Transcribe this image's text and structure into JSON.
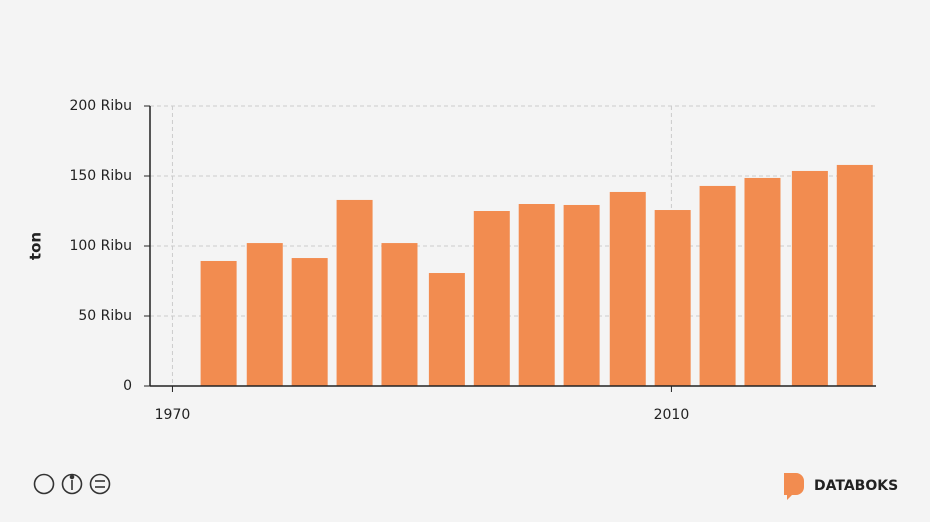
{
  "chart_data": {
    "type": "bar",
    "y_label": "ton",
    "x": [
      1973.7,
      1977.4,
      1981.0,
      1984.6,
      1988.2,
      1992.0,
      1995.6,
      1999.2,
      2002.8,
      2006.5,
      2010.1,
      2013.7,
      2017.3,
      2021.1,
      2024.7
    ],
    "values": [
      89300,
      102100,
      91400,
      132900,
      102100,
      80700,
      125000,
      130000,
      129300,
      138600,
      125700,
      142900,
      148600,
      153600,
      157900
    ],
    "color": "#f28c50",
    "xlim": [
      1968.2,
      2026.4
    ],
    "xticks": [
      1970,
      2010
    ],
    "ylim": [
      0,
      200000
    ],
    "yticks": [
      0,
      {
        "value": 50000,
        "label": "50 Ribu"
      },
      {
        "value": 100000,
        "label": "100 Ribu"
      },
      {
        "value": 150000,
        "label": "150 Ribu"
      },
      {
        "value": 200000,
        "label": "200 Ribu"
      }
    ],
    "grid": true
  },
  "footer": {
    "brand": "DATABOKS"
  }
}
